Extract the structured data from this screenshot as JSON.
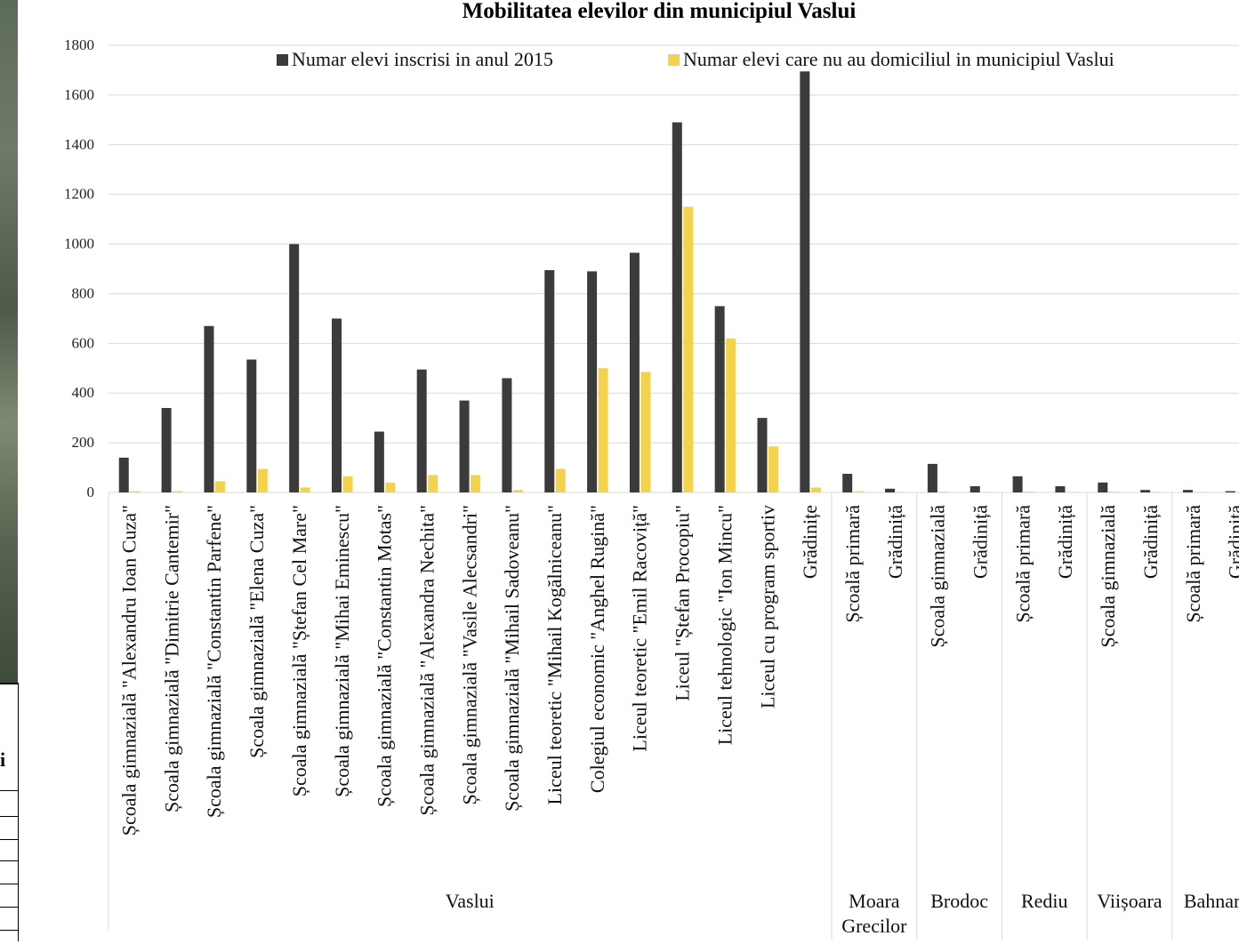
{
  "chart_data": {
    "type": "bar",
    "title": "Mobilitatea elevilor din municipiul Vaslui",
    "ylim": [
      0,
      1800
    ],
    "yticks": [
      0,
      200,
      400,
      600,
      800,
      1000,
      1200,
      1400,
      1600,
      1800
    ],
    "grid": true,
    "legend_position": "top",
    "series": [
      {
        "name": "Numar elevi inscrisi in anul 2015",
        "color": "#3b3b3b"
      },
      {
        "name": "Numar elevi care nu au domiciliul in municipiul Vaslui",
        "color": "#f3d34c"
      }
    ],
    "groups": [
      {
        "label": "Vaslui",
        "categories": [
          "Școala gimnazială \"Alexandru Ioan Cuza\"",
          "Școala gimnazială \"Dimitrie Cantemir\"",
          "Școala gimnazială \"Constantin Parfene\"",
          "Școala gimnazială \"Elena Cuza\"",
          "Școala gimnazială \"Ștefan Cel Mare\"",
          "Școala gimnazială \"Mihai Eminescu\"",
          "Școala gimnazială \"Constantin Motas\"",
          "Școala gimnazială \"Alexandra Nechita\"",
          "Școala gimnazială \"Vasile Alecsandri\"",
          "Școala gimnazială \"Mihail Sadoveanu\"",
          "Liceul teoretic \"Mihail Kogălniceanu\"",
          "Colegiul economic \"Anghel Rugină\"",
          "Liceul teoretic \"Emil Racoviță\"",
          "Liceul \"Ștefan Procopiu\"",
          "Liceul tehnologic \"Ion Mincu\"",
          "Liceul cu program sportiv",
          "Grădinițe"
        ]
      },
      {
        "label": "Moara\nGrecilor",
        "categories": [
          "Școală primară",
          "Grădiniță"
        ]
      },
      {
        "label": "Brodoc",
        "categories": [
          "Școala gimnazială",
          "Grădiniță"
        ]
      },
      {
        "label": "Rediu",
        "categories": [
          "Școală primară",
          "Grădiniță"
        ]
      },
      {
        "label": "Viișoara",
        "categories": [
          "Școala gimnazială",
          "Grădiniță"
        ]
      },
      {
        "label": "Bahnari",
        "categories": [
          "Școală primară",
          "Grădiniță"
        ]
      }
    ],
    "values": {
      "enrolled": [
        140,
        340,
        670,
        535,
        1000,
        700,
        245,
        495,
        370,
        460,
        895,
        890,
        965,
        1490,
        750,
        300,
        1695,
        75,
        15,
        115,
        25,
        65,
        25,
        40,
        10,
        10,
        5
      ],
      "non_resident": [
        5,
        5,
        45,
        95,
        20,
        65,
        40,
        70,
        70,
        10,
        95,
        500,
        485,
        1150,
        620,
        185,
        20,
        5,
        2,
        3,
        2,
        3,
        2,
        3,
        2,
        2,
        2
      ]
    }
  },
  "sidebar": {
    "fragment_letter": "i"
  }
}
